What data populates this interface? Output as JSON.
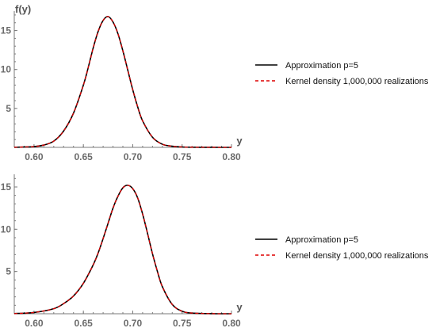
{
  "chart_data": [
    {
      "type": "line",
      "xlabel": "y",
      "ylabel": "f(y)",
      "xlim": [
        0.58,
        0.8
      ],
      "ylim": [
        0,
        17.5
      ],
      "xticks": [
        "0.60",
        "0.65",
        "0.70",
        "0.75",
        "0.80"
      ],
      "yticks": [
        "5",
        "10",
        "15"
      ],
      "legend_position": "right",
      "grid": false,
      "series": [
        {
          "name": "Approximation p=5",
          "color": "#000000",
          "style": "solid",
          "x": [
            0.58,
            0.59,
            0.6,
            0.61,
            0.62,
            0.63,
            0.64,
            0.65,
            0.655,
            0.66,
            0.665,
            0.67,
            0.675,
            0.68,
            0.685,
            0.69,
            0.695,
            0.7,
            0.705,
            0.71,
            0.72,
            0.73,
            0.74,
            0.75,
            0.76,
            0.77,
            0.78,
            0.79,
            0.8
          ],
          "values": [
            0.01,
            0.05,
            0.1,
            0.3,
            0.8,
            2.1,
            4.4,
            8.0,
            10.3,
            12.8,
            14.9,
            16.3,
            16.8,
            16.1,
            14.6,
            12.4,
            9.9,
            7.4,
            5.2,
            3.4,
            1.3,
            0.4,
            0.15,
            0.05,
            0.02,
            0.01,
            0.01,
            0.0,
            0.0
          ]
        },
        {
          "name": "Kernel density 1,000,000 realizations",
          "color": "#dd0000",
          "style": "dashed",
          "x": [
            0.58,
            0.59,
            0.6,
            0.61,
            0.62,
            0.63,
            0.64,
            0.65,
            0.655,
            0.66,
            0.665,
            0.67,
            0.675,
            0.68,
            0.685,
            0.69,
            0.695,
            0.7,
            0.705,
            0.71,
            0.72,
            0.73,
            0.74,
            0.75,
            0.76,
            0.77,
            0.78,
            0.79,
            0.8
          ],
          "values": [
            0.01,
            0.05,
            0.1,
            0.3,
            0.8,
            2.1,
            4.4,
            8.0,
            10.3,
            12.8,
            14.9,
            16.3,
            16.8,
            16.1,
            14.6,
            12.4,
            9.9,
            7.4,
            5.2,
            3.4,
            1.3,
            0.4,
            0.15,
            0.05,
            0.02,
            0.01,
            0.01,
            0.0,
            0.0
          ]
        }
      ]
    },
    {
      "type": "line",
      "xlabel": "y",
      "ylabel": "",
      "xlim": [
        0.58,
        0.8
      ],
      "ylim": [
        0,
        16.5
      ],
      "xticks": [
        "0.60",
        "0.65",
        "0.70",
        "0.75",
        "0.80"
      ],
      "yticks": [
        "5",
        "10",
        "15"
      ],
      "legend_position": "right",
      "grid": false,
      "series": [
        {
          "name": "Approximation p=5",
          "color": "#000000",
          "style": "solid",
          "x": [
            0.58,
            0.6,
            0.62,
            0.63,
            0.64,
            0.65,
            0.66,
            0.665,
            0.67,
            0.675,
            0.68,
            0.685,
            0.69,
            0.695,
            0.7,
            0.705,
            0.71,
            0.715,
            0.72,
            0.725,
            0.73,
            0.74,
            0.75,
            0.76,
            0.78,
            0.8
          ],
          "values": [
            0.02,
            0.15,
            0.6,
            1.2,
            2.1,
            3.6,
            5.8,
            7.2,
            8.9,
            10.7,
            12.5,
            13.9,
            14.9,
            15.2,
            14.8,
            13.7,
            11.8,
            9.5,
            7.1,
            5.0,
            3.2,
            1.1,
            0.3,
            0.08,
            0.01,
            0.0
          ]
        },
        {
          "name": "Kernel density 1,000,000 realizations",
          "color": "#dd0000",
          "style": "dashed",
          "x": [
            0.58,
            0.6,
            0.62,
            0.63,
            0.64,
            0.65,
            0.66,
            0.665,
            0.67,
            0.675,
            0.68,
            0.685,
            0.69,
            0.695,
            0.7,
            0.705,
            0.71,
            0.715,
            0.72,
            0.725,
            0.73,
            0.74,
            0.75,
            0.76,
            0.78,
            0.8
          ],
          "values": [
            0.02,
            0.15,
            0.6,
            1.2,
            2.1,
            3.6,
            5.8,
            7.2,
            8.9,
            10.7,
            12.5,
            13.9,
            14.9,
            15.2,
            14.8,
            13.7,
            11.8,
            9.5,
            7.1,
            5.0,
            3.2,
            1.1,
            0.3,
            0.08,
            0.01,
            0.0
          ]
        }
      ]
    }
  ]
}
